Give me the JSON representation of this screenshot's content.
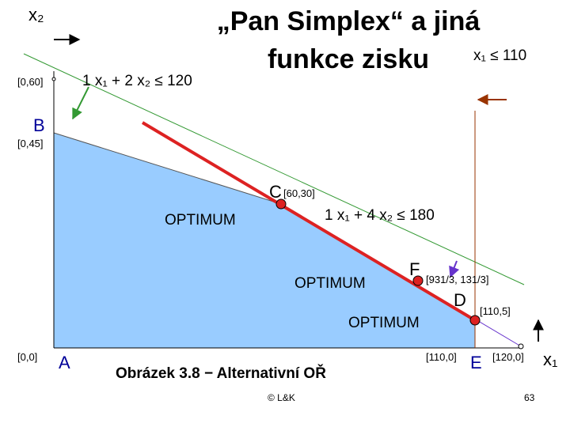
{
  "title": {
    "lines": [
      "„Pan Simplex“ a jiná",
      "funkce zisku"
    ]
  },
  "axes": {
    "x": "x₁",
    "y": "x₂"
  },
  "constraints": [
    "1 x₁ + 2 x₂ ≤ 120",
    "1 x₁ + 4 x₂ ≤ 180",
    "x₁ ≤ 110"
  ],
  "points": {
    "top": "[0,60]",
    "B": {
      "label": "B",
      "coords": "[0,45]"
    },
    "C": {
      "label": "C",
      "coords": "[60,30]"
    },
    "F": {
      "label": "F",
      "coords": "[931/3, 131/3]"
    },
    "D": {
      "label": "D",
      "coords": "[110,5]"
    },
    "A": {
      "label": "A",
      "coords": "[0,0]"
    },
    "E": {
      "label": "E",
      "coords": "[110,0]"
    },
    "end": "[120,0]"
  },
  "optimum": [
    "OPTIMUM",
    "OPTIMUM",
    "OPTIMUM"
  ],
  "caption": "Obrázek 3.8 − Alternativní OŘ",
  "footer": {
    "copyright": "© L&K",
    "page": "63"
  }
}
